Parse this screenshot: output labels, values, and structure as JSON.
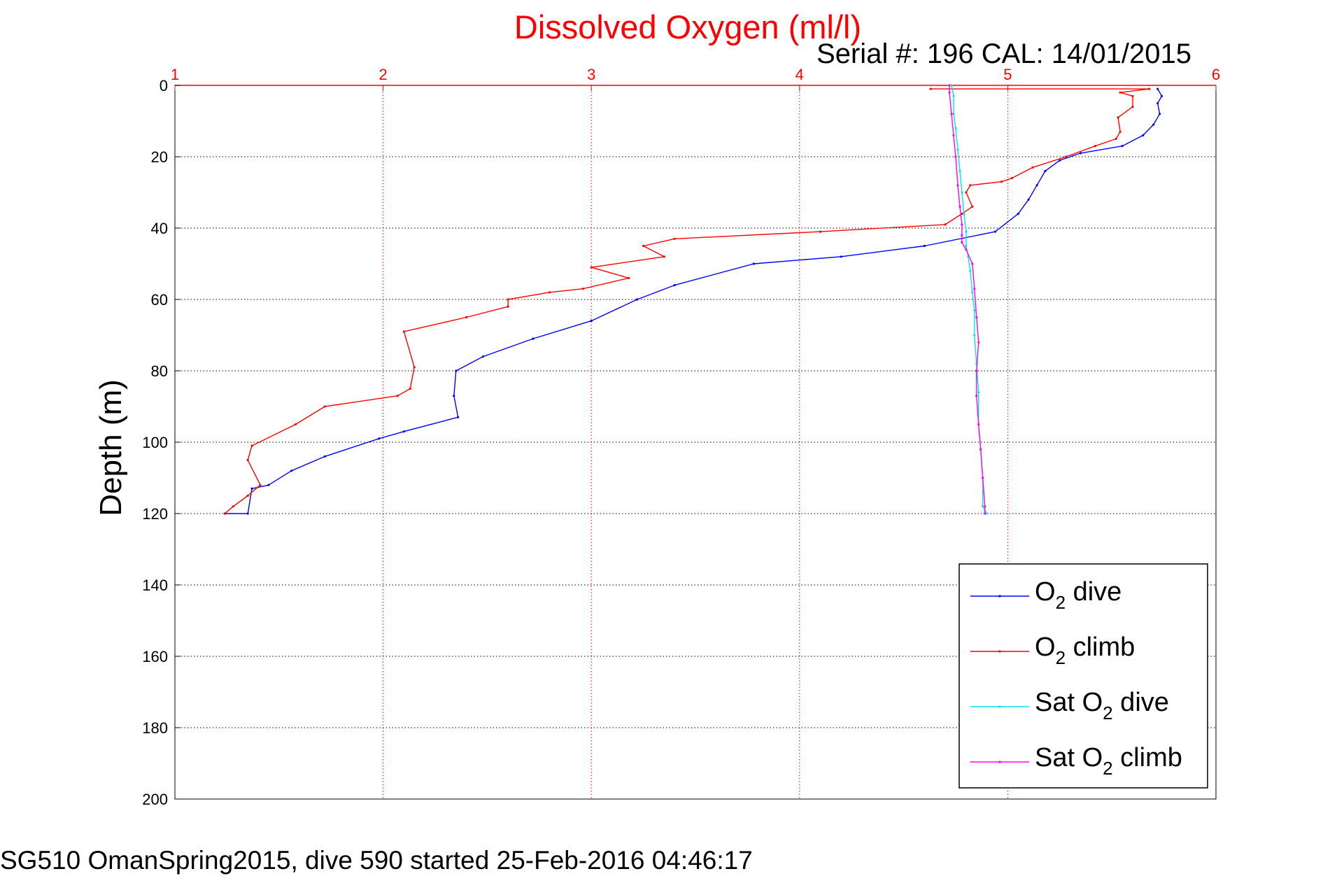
{
  "chart_data": {
    "type": "line",
    "title": "Dissolved Oxygen (ml/l)",
    "subtitle": "Serial #: 196  CAL: 14/01/2015",
    "xlabel": "",
    "ylabel": "Depth (m)",
    "xlim": [
      1,
      6
    ],
    "ylim": [
      0,
      200
    ],
    "y_reversed": true,
    "x_axis_position": "top",
    "xticks": [
      "1",
      "2",
      "3",
      "4",
      "5",
      "6"
    ],
    "yticks": [
      "0",
      "20",
      "40",
      "60",
      "80",
      "100",
      "120",
      "140",
      "160",
      "180",
      "200"
    ],
    "grid": true,
    "legend_position": "bottom-right",
    "caption": "SG510 OmanSpring2015, dive 590 started 25-Feb-2016 04:46:17",
    "legend": [
      {
        "prefix": "O",
        "sub": "2",
        "suffix": " dive",
        "color": "#0000ff"
      },
      {
        "prefix": "O",
        "sub": "2",
        "suffix": " climb",
        "color": "#ff0000"
      },
      {
        "prefix": "Sat O",
        "sub": "2",
        "suffix": " dive",
        "color": "#00e5e5"
      },
      {
        "prefix": "Sat O",
        "sub": "2",
        "suffix": " climb",
        "color": "#ff00ff"
      }
    ],
    "series": [
      {
        "name": "O2 dive",
        "color": "#0000ff",
        "x": [
          5.72,
          5.74,
          5.72,
          5.73,
          5.7,
          5.65,
          5.55,
          5.35,
          5.25,
          5.18,
          5.14,
          5.1,
          5.05,
          4.94,
          4.6,
          4.2,
          3.78,
          3.4,
          3.22,
          3.0,
          2.72,
          2.48,
          2.35,
          2.34,
          2.36,
          2.1,
          1.98,
          1.72,
          1.56,
          1.45,
          1.37,
          1.35,
          1.24
        ],
        "y": [
          1,
          3,
          5,
          8,
          11,
          14,
          17,
          19,
          21,
          24,
          28,
          32,
          36,
          41,
          45,
          48,
          50,
          56,
          60,
          66,
          71,
          76,
          80,
          87,
          93,
          97,
          99,
          104,
          108,
          112,
          113,
          120,
          120
        ]
      },
      {
        "name": "O2 climb",
        "color": "#ff0000",
        "x": [
          4.63,
          5.68,
          5.54,
          5.6,
          5.6,
          5.53,
          5.54,
          5.52,
          5.42,
          5.28,
          5.12,
          5.02,
          4.97,
          4.82,
          4.8,
          4.83,
          4.78,
          4.7,
          4.1,
          3.4,
          3.25,
          3.35,
          3.0,
          3.18,
          2.96,
          2.8,
          2.6,
          2.6,
          2.4,
          2.1,
          2.15,
          2.13,
          2.07,
          1.72,
          1.58,
          1.37,
          1.35,
          1.41,
          1.35,
          1.28,
          1.24
        ],
        "y": [
          1,
          1,
          2,
          3,
          6,
          9,
          13,
          15,
          17,
          20,
          23,
          26,
          27,
          28,
          30,
          34,
          36,
          39,
          41,
          43,
          45,
          48,
          51,
          54,
          57,
          58,
          60,
          62,
          65,
          69,
          79,
          85,
          87,
          90,
          95,
          101,
          105,
          112,
          115,
          118,
          120
        ]
      },
      {
        "name": "Sat O2 dive",
        "color": "#00e5e5",
        "x": [
          4.73,
          4.74,
          4.74,
          4.75,
          4.76,
          4.77,
          4.78,
          4.79,
          4.8,
          4.8,
          4.81,
          4.82,
          4.83,
          4.84,
          4.84,
          4.85,
          4.86,
          4.86,
          4.87,
          4.88,
          4.88,
          4.9
        ],
        "y": [
          0,
          3,
          8,
          12,
          18,
          24,
          30,
          36,
          41,
          45,
          48,
          52,
          58,
          63,
          70,
          78,
          86,
          95,
          102,
          110,
          118,
          120
        ]
      },
      {
        "name": "Sat O2 climb",
        "color": "#ff00ff",
        "x": [
          4.72,
          4.72,
          4.73,
          4.74,
          4.75,
          4.76,
          4.77,
          4.78,
          4.78,
          4.78,
          4.8,
          4.83,
          4.84,
          4.85,
          4.86,
          4.85,
          4.85,
          4.86,
          4.87,
          4.88,
          4.89,
          4.89
        ],
        "y": [
          0,
          2,
          8,
          14,
          20,
          28,
          34,
          39,
          42,
          44,
          46,
          50,
          57,
          65,
          72,
          80,
          87,
          95,
          102,
          110,
          118,
          120
        ]
      }
    ]
  }
}
